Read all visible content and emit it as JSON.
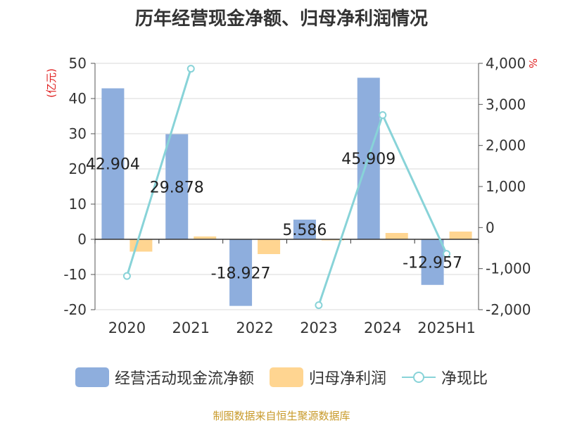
{
  "title": "历年经营现金净额、归母净利润情况",
  "source": "制图数据来自恒生聚源数据库",
  "colors": {
    "cash": "#8eaedd",
    "profit": "#ffd591",
    "ratio": "#88d3d8",
    "unit": "#e02020"
  },
  "chart_data": {
    "type": "bar",
    "categories": [
      "2020",
      "2021",
      "2022",
      "2023",
      "2024",
      "2025H1"
    ],
    "y_left": {
      "unit_label": "(亿元)",
      "ylim": [
        -20,
        50
      ],
      "ticks": [
        -20,
        -10,
        0,
        10,
        20,
        30,
        40,
        50
      ]
    },
    "y_right": {
      "unit_label": "%",
      "ylim": [
        -2000,
        4000
      ],
      "ticks": [
        -2000,
        -1000,
        0,
        1000,
        2000,
        3000,
        4000
      ],
      "tick_labels": [
        "-2,000",
        "-1,000",
        "0",
        "1,000",
        "2,000",
        "3,000",
        "4,000"
      ]
    },
    "series": [
      {
        "name": "经营活动现金流净额",
        "type": "bar",
        "axis": "left",
        "values": [
          42.904,
          29.878,
          -18.927,
          5.586,
          45.909,
          -12.957
        ],
        "labels": [
          "42.904",
          "29.878",
          "-18.927",
          "5.586",
          "45.909",
          "-12.957"
        ]
      },
      {
        "name": "归母净利润",
        "type": "bar",
        "axis": "left",
        "values": [
          -3.5,
          0.8,
          -4.2,
          -0.3,
          1.8,
          2.2
        ]
      },
      {
        "name": "净现比",
        "type": "line",
        "axis": "right",
        "values": [
          -1180,
          3870,
          null,
          -1890,
          2740,
          -640
        ]
      }
    ],
    "grid": true,
    "legend": "bottom"
  }
}
